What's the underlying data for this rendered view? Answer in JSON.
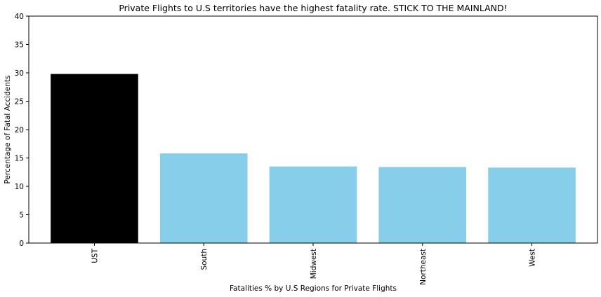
{
  "chart_data": {
    "type": "bar",
    "title": "Private Flights to U.S territories have the highest fatality rate. STICK TO THE MAINLAND!",
    "xlabel": "Fatalities % by U.S Regions for Private Flights",
    "ylabel": "Percentage of Fatal Accidents",
    "categories": [
      "UST",
      "South",
      "Midwest",
      "Northeast",
      "West"
    ],
    "values": [
      29.8,
      15.8,
      13.5,
      13.4,
      13.3
    ],
    "colors": [
      "#000000",
      "#87ceeb",
      "#87ceeb",
      "#87ceeb",
      "#87ceeb"
    ],
    "ylim": [
      0,
      40
    ],
    "yticks": [
      0,
      5,
      10,
      15,
      20,
      25,
      30,
      35,
      40
    ],
    "grid": false,
    "legend": "none"
  }
}
